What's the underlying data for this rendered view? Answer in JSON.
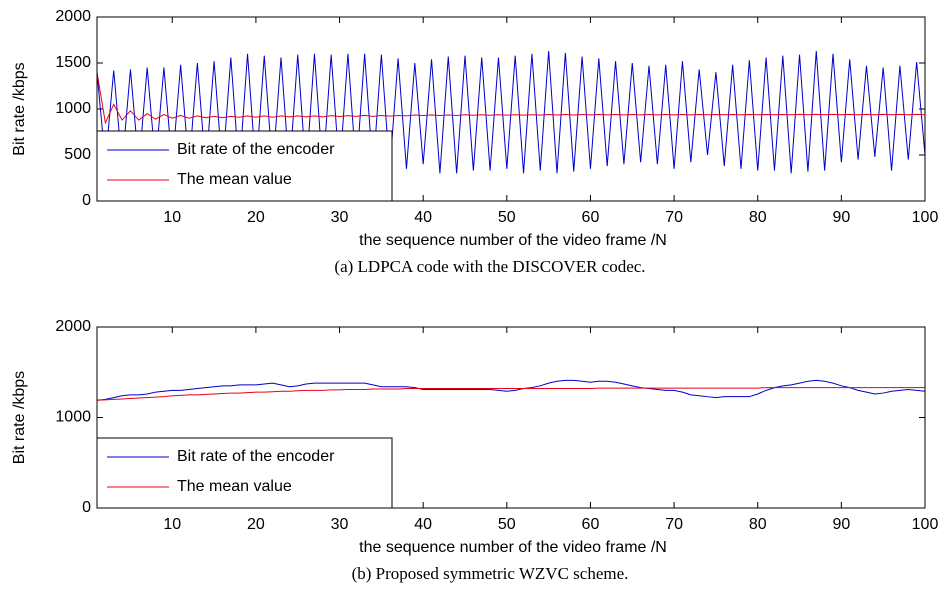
{
  "chart_data": [
    {
      "type": "line",
      "caption": "(a) LDPCA code with the DISCOVER codec.",
      "xlabel": "the sequence number of the video frame /N",
      "ylabel": "Bit rate /kbps",
      "xlim": [
        1,
        100
      ],
      "xticks": [
        10,
        20,
        30,
        40,
        50,
        60,
        70,
        80,
        90,
        100
      ],
      "ylim": [
        0,
        2000
      ],
      "yticks": [
        0,
        500,
        1000,
        1500,
        2000
      ],
      "legend": "lower left",
      "x": [
        1,
        2,
        3,
        4,
        5,
        6,
        7,
        8,
        9,
        10,
        11,
        12,
        13,
        14,
        15,
        16,
        17,
        18,
        19,
        20,
        21,
        22,
        23,
        24,
        25,
        26,
        27,
        28,
        29,
        30,
        31,
        32,
        33,
        34,
        35,
        36,
        37,
        38,
        39,
        40,
        41,
        42,
        43,
        44,
        45,
        46,
        47,
        48,
        49,
        50,
        51,
        52,
        53,
        54,
        55,
        56,
        57,
        58,
        59,
        60,
        61,
        62,
        63,
        64,
        65,
        66,
        67,
        68,
        69,
        70,
        71,
        72,
        73,
        74,
        75,
        76,
        77,
        78,
        79,
        80,
        81,
        82,
        83,
        84,
        85,
        86,
        87,
        88,
        89,
        90,
        91,
        92,
        93,
        94,
        95,
        96,
        97,
        98,
        99,
        100
      ],
      "series": [
        {
          "name": "Bit rate of the encoder",
          "color": "#0000cc",
          "values": [
            1400,
            420,
            1420,
            380,
            1430,
            380,
            1450,
            400,
            1450,
            380,
            1480,
            370,
            1500,
            350,
            1520,
            330,
            1560,
            320,
            1600,
            330,
            1580,
            340,
            1560,
            320,
            1590,
            310,
            1600,
            320,
            1590,
            320,
            1600,
            330,
            1600,
            330,
            1590,
            340,
            1550,
            350,
            1500,
            400,
            1540,
            300,
            1570,
            300,
            1580,
            330,
            1560,
            330,
            1560,
            350,
            1580,
            300,
            1600,
            330,
            1630,
            300,
            1610,
            320,
            1570,
            350,
            1550,
            380,
            1520,
            400,
            1500,
            420,
            1470,
            400,
            1480,
            350,
            1520,
            420,
            1430,
            500,
            1400,
            380,
            1480,
            350,
            1530,
            330,
            1560,
            330,
            1580,
            300,
            1590,
            320,
            1630,
            330,
            1600,
            420,
            1540,
            450,
            1470,
            480,
            1450,
            330,
            1470,
            450,
            1510,
            500
          ]
        },
        {
          "name": "The mean value",
          "color": "#e8001c",
          "values": [
            1400,
            850,
            1050,
            880,
            980,
            880,
            950,
            890,
            940,
            900,
            930,
            900,
            925,
            905,
            920,
            905,
            920,
            910,
            925,
            910,
            925,
            910,
            925,
            915,
            925,
            915,
            925,
            915,
            928,
            918,
            928,
            920,
            930,
            920,
            930,
            922,
            930,
            925,
            935,
            930,
            935,
            930,
            935,
            930,
            937,
            932,
            937,
            932,
            937,
            933,
            937,
            933,
            938,
            934,
            940,
            935,
            940,
            935,
            940,
            936,
            940,
            936,
            940,
            936,
            940,
            936,
            940,
            936,
            940,
            936,
            940,
            936,
            940,
            937,
            940,
            937,
            940,
            937,
            940,
            937,
            940,
            937,
            940,
            937,
            941,
            938,
            941,
            938,
            941,
            938,
            941,
            938,
            941,
            938,
            941,
            938,
            941,
            938,
            941,
            938
          ]
        }
      ]
    },
    {
      "type": "line",
      "caption": "(b) Proposed symmetric WZVC scheme.",
      "xlabel": "the sequence number of the video frame /N",
      "ylabel": "Bit rate /kbps",
      "xlim": [
        1,
        100
      ],
      "xticks": [
        10,
        20,
        30,
        40,
        50,
        60,
        70,
        80,
        90,
        100
      ],
      "ylim": [
        0,
        2000
      ],
      "yticks": [
        0,
        1000,
        2000
      ],
      "legend": "lower left",
      "x": [
        1,
        2,
        3,
        4,
        5,
        6,
        7,
        8,
        9,
        10,
        11,
        12,
        13,
        14,
        15,
        16,
        17,
        18,
        19,
        20,
        21,
        22,
        23,
        24,
        25,
        26,
        27,
        28,
        29,
        30,
        31,
        32,
        33,
        34,
        35,
        36,
        37,
        38,
        39,
        40,
        41,
        42,
        43,
        44,
        45,
        46,
        47,
        48,
        49,
        50,
        51,
        52,
        53,
        54,
        55,
        56,
        57,
        58,
        59,
        60,
        61,
        62,
        63,
        64,
        65,
        66,
        67,
        68,
        69,
        70,
        71,
        72,
        73,
        74,
        75,
        76,
        77,
        78,
        79,
        80,
        81,
        82,
        83,
        84,
        85,
        86,
        87,
        88,
        89,
        90,
        91,
        92,
        93,
        94,
        95,
        96,
        97,
        98,
        99,
        100
      ],
      "series": [
        {
          "name": "Bit rate of the encoder",
          "color": "#0000cc",
          "values": [
            1190,
            1200,
            1220,
            1240,
            1250,
            1250,
            1260,
            1280,
            1290,
            1300,
            1300,
            1310,
            1320,
            1330,
            1340,
            1350,
            1350,
            1360,
            1360,
            1360,
            1370,
            1380,
            1360,
            1340,
            1350,
            1370,
            1380,
            1380,
            1380,
            1380,
            1380,
            1380,
            1380,
            1360,
            1340,
            1340,
            1340,
            1340,
            1330,
            1310,
            1310,
            1310,
            1310,
            1310,
            1310,
            1310,
            1310,
            1310,
            1300,
            1290,
            1300,
            1320,
            1330,
            1350,
            1380,
            1400,
            1410,
            1410,
            1400,
            1390,
            1400,
            1400,
            1390,
            1370,
            1350,
            1330,
            1320,
            1310,
            1300,
            1300,
            1280,
            1250,
            1240,
            1230,
            1220,
            1230,
            1230,
            1230,
            1230,
            1260,
            1300,
            1330,
            1350,
            1360,
            1380,
            1400,
            1410,
            1400,
            1380,
            1350,
            1330,
            1300,
            1280,
            1260,
            1270,
            1290,
            1300,
            1310,
            1300,
            1290
          ]
        },
        {
          "name": "The mean value",
          "color": "#e8001c",
          "values": [
            1190,
            1195,
            1200,
            1205,
            1210,
            1215,
            1220,
            1225,
            1230,
            1240,
            1245,
            1250,
            1250,
            1255,
            1260,
            1265,
            1270,
            1270,
            1275,
            1280,
            1280,
            1285,
            1290,
            1290,
            1295,
            1300,
            1300,
            1300,
            1305,
            1305,
            1310,
            1310,
            1310,
            1315,
            1315,
            1315,
            1315,
            1320,
            1320,
            1320,
            1320,
            1320,
            1320,
            1320,
            1320,
            1320,
            1320,
            1320,
            1320,
            1320,
            1320,
            1320,
            1320,
            1320,
            1320,
            1320,
            1320,
            1320,
            1320,
            1320,
            1325,
            1325,
            1325,
            1325,
            1325,
            1325,
            1325,
            1325,
            1325,
            1325,
            1325,
            1325,
            1325,
            1325,
            1325,
            1325,
            1325,
            1325,
            1325,
            1325,
            1330,
            1330,
            1330,
            1330,
            1330,
            1330,
            1330,
            1330,
            1330,
            1330,
            1330,
            1330,
            1330,
            1330,
            1330,
            1330,
            1330,
            1330,
            1330,
            1330
          ]
        }
      ]
    }
  ]
}
